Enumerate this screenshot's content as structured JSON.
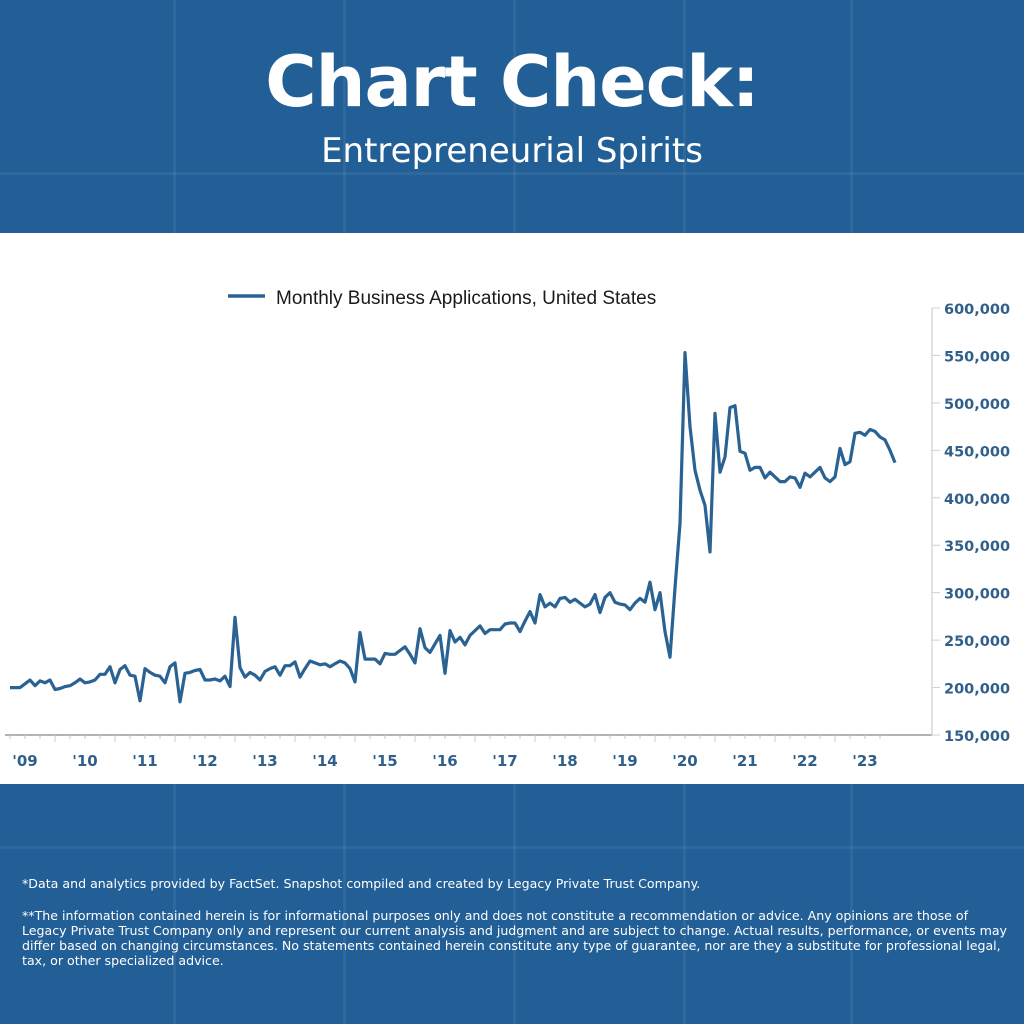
{
  "header": {
    "title": "Chart Check:",
    "subtitle": "Entrepreneurial Spirits"
  },
  "footer": {
    "note1": "*Data and analytics provided by FactSet. Snapshot compiled and created by Legacy Private Trust Company.",
    "note2": "**The information contained herein is for informational purposes only and does not constitute a recommendation or advice. Any opinions are those of Legacy Private Trust Company only and represent our current analysis and judgment and are subject to change. Actual results, performance, or events may differ based on changing circumstances. No statements contained herein constitute any type of guarantee, nor are they a substitute for professional legal, tax, or other specialized advice."
  },
  "colors": {
    "background": "#235f97",
    "line": "#2a6293",
    "axis_text": "#2f5f8a"
  },
  "chart_data": {
    "type": "line",
    "title": "",
    "xlabel": "",
    "ylabel": "",
    "legend": {
      "position": "top-center",
      "entries": [
        "Monthly Business Applications, United States"
      ]
    },
    "grid": false,
    "y_axis_side": "right",
    "ylim": [
      150000,
      600000
    ],
    "y_ticks": [
      150000,
      200000,
      250000,
      300000,
      350000,
      400000,
      450000,
      500000,
      550000,
      600000
    ],
    "y_tick_labels": [
      "150,000",
      "200,000",
      "250,000",
      "300,000",
      "350,000",
      "400,000",
      "450,000",
      "500,000",
      "550,000",
      "600,000"
    ],
    "x_tick_labels": [
      "'09",
      "'10",
      "'11",
      "'12",
      "'13",
      "'14",
      "'15",
      "'16",
      "'17",
      "'18",
      "'19",
      "'20",
      "'21",
      "'22",
      "'23"
    ],
    "x_range": [
      "2009-04",
      "2024-01"
    ],
    "series": [
      {
        "name": "Monthly Business Applications, United States",
        "x": [
          "2009-04",
          "2009-05",
          "2009-06",
          "2009-07",
          "2009-08",
          "2009-09",
          "2009-10",
          "2009-11",
          "2009-12",
          "2010-01",
          "2010-02",
          "2010-03",
          "2010-04",
          "2010-05",
          "2010-06",
          "2010-07",
          "2010-08",
          "2010-09",
          "2010-10",
          "2010-11",
          "2010-12",
          "2011-01",
          "2011-02",
          "2011-03",
          "2011-04",
          "2011-05",
          "2011-06",
          "2011-07",
          "2011-08",
          "2011-09",
          "2011-10",
          "2011-11",
          "2011-12",
          "2012-01",
          "2012-02",
          "2012-03",
          "2012-04",
          "2012-05",
          "2012-06",
          "2012-07",
          "2012-08",
          "2012-09",
          "2012-10",
          "2012-11",
          "2012-12",
          "2013-01",
          "2013-02",
          "2013-03",
          "2013-04",
          "2013-05",
          "2013-06",
          "2013-07",
          "2013-08",
          "2013-09",
          "2013-10",
          "2013-11",
          "2013-12",
          "2014-01",
          "2014-02",
          "2014-03",
          "2014-04",
          "2014-05",
          "2014-06",
          "2014-07",
          "2014-08",
          "2014-09",
          "2014-10",
          "2014-11",
          "2014-12",
          "2015-01",
          "2015-02",
          "2015-03",
          "2015-04",
          "2015-05",
          "2015-06",
          "2015-07",
          "2015-08",
          "2015-09",
          "2015-10",
          "2015-11",
          "2015-12",
          "2016-01",
          "2016-02",
          "2016-03",
          "2016-04",
          "2016-05",
          "2016-06",
          "2016-07",
          "2016-08",
          "2016-09",
          "2016-10",
          "2016-11",
          "2016-12",
          "2017-01",
          "2017-02",
          "2017-03",
          "2017-04",
          "2017-05",
          "2017-06",
          "2017-07",
          "2017-08",
          "2017-09",
          "2017-10",
          "2017-11",
          "2017-12",
          "2018-01",
          "2018-02",
          "2018-03",
          "2018-04",
          "2018-05",
          "2018-06",
          "2018-07",
          "2018-08",
          "2018-09",
          "2018-10",
          "2018-11",
          "2018-12",
          "2019-01",
          "2019-02",
          "2019-03",
          "2019-04",
          "2019-05",
          "2019-06",
          "2019-07",
          "2019-08",
          "2019-09",
          "2019-10",
          "2019-11",
          "2019-12",
          "2020-01",
          "2020-02",
          "2020-03",
          "2020-04",
          "2020-05",
          "2020-06",
          "2020-07",
          "2020-08",
          "2020-09",
          "2020-10",
          "2020-11",
          "2020-12",
          "2021-01",
          "2021-02",
          "2021-03",
          "2021-04",
          "2021-05",
          "2021-06",
          "2021-07",
          "2021-08",
          "2021-09",
          "2021-10",
          "2021-11",
          "2021-12",
          "2022-01",
          "2022-02",
          "2022-03",
          "2022-04",
          "2022-05",
          "2022-06",
          "2022-07",
          "2022-08",
          "2022-09",
          "2022-10",
          "2022-11",
          "2022-12",
          "2023-01",
          "2023-02",
          "2023-03",
          "2023-04",
          "2023-05",
          "2023-06",
          "2023-07",
          "2023-08",
          "2023-09",
          "2023-10",
          "2023-11",
          "2023-12",
          "2024-01"
        ],
        "values": [
          200000,
          200000,
          200000,
          204000,
          208000,
          202000,
          207000,
          205000,
          208000,
          198000,
          199000,
          201000,
          202000,
          205000,
          209000,
          205000,
          206000,
          208000,
          214000,
          214000,
          222000,
          205000,
          219000,
          223000,
          213000,
          212000,
          186000,
          220000,
          216000,
          213000,
          212000,
          205000,
          222000,
          226000,
          185000,
          215000,
          216000,
          218000,
          219000,
          208000,
          208000,
          209000,
          207000,
          212000,
          201000,
          274000,
          221000,
          211000,
          216000,
          213000,
          208000,
          217000,
          220000,
          222000,
          213000,
          223000,
          223000,
          227000,
          211000,
          220000,
          228000,
          226000,
          224000,
          225000,
          222000,
          225000,
          228000,
          226000,
          220000,
          206000,
          258000,
          230000,
          230000,
          230000,
          225000,
          236000,
          235000,
          235000,
          239000,
          243000,
          235000,
          226000,
          262000,
          242000,
          237000,
          246000,
          255000,
          215000,
          260000,
          248000,
          253000,
          245000,
          255000,
          260000,
          265000,
          257000,
          261000,
          261000,
          261000,
          267000,
          268000,
          268000,
          259000,
          270000,
          280000,
          268000,
          298000,
          285000,
          289000,
          285000,
          294000,
          295000,
          290000,
          293000,
          289000,
          285000,
          288000,
          298000,
          279000,
          295000,
          300000,
          290000,
          288000,
          287000,
          282000,
          289000,
          294000,
          290000,
          311000,
          282000,
          300000,
          259000,
          232000,
          305000,
          373000,
          553000,
          475000,
          429000,
          408000,
          392000,
          343000,
          489000,
          427000,
          443000,
          495000,
          497000,
          449000,
          447000,
          429000,
          432000,
          432000,
          421000,
          427000,
          422000,
          417000,
          417000,
          422000,
          421000,
          411000,
          426000,
          422000,
          427000,
          432000,
          421000,
          417000,
          422000,
          452000,
          435000,
          438000,
          468000,
          469000,
          466000,
          472000,
          470000,
          464000,
          461000,
          450000,
          437000
        ]
      }
    ]
  }
}
